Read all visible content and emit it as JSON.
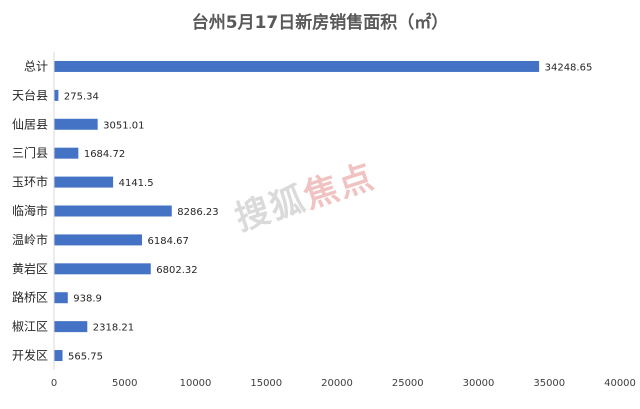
{
  "chart_data": {
    "type": "bar",
    "orientation": "horizontal",
    "title": "台州5月17日新房销售面积（㎡）",
    "categories": [
      "总计",
      "天台县",
      "仙居县",
      "三门县",
      "玉环市",
      "临海市",
      "温岭市",
      "黄岩区",
      "路桥区",
      "椒江区",
      "开发区"
    ],
    "values": [
      34248.65,
      275.34,
      3051.01,
      1684.72,
      4141.5,
      8286.23,
      6184.67,
      6802.32,
      938.9,
      2318.21,
      565.75
    ],
    "value_labels": [
      "34248.65",
      "275.34",
      "3051.01",
      "1684.72",
      "4141.5",
      "8286.23",
      "6184.67",
      "6802.32",
      "938.9",
      "2318.21",
      "565.75"
    ],
    "xlim": [
      0,
      40000
    ],
    "x_ticks": [
      0,
      5000,
      10000,
      15000,
      20000,
      25000,
      30000,
      35000,
      40000
    ],
    "bar_color": "#4472c4",
    "grid": false,
    "legend": "none"
  },
  "watermark": {
    "text_gray": "搜狐",
    "text_red": "焦点"
  }
}
